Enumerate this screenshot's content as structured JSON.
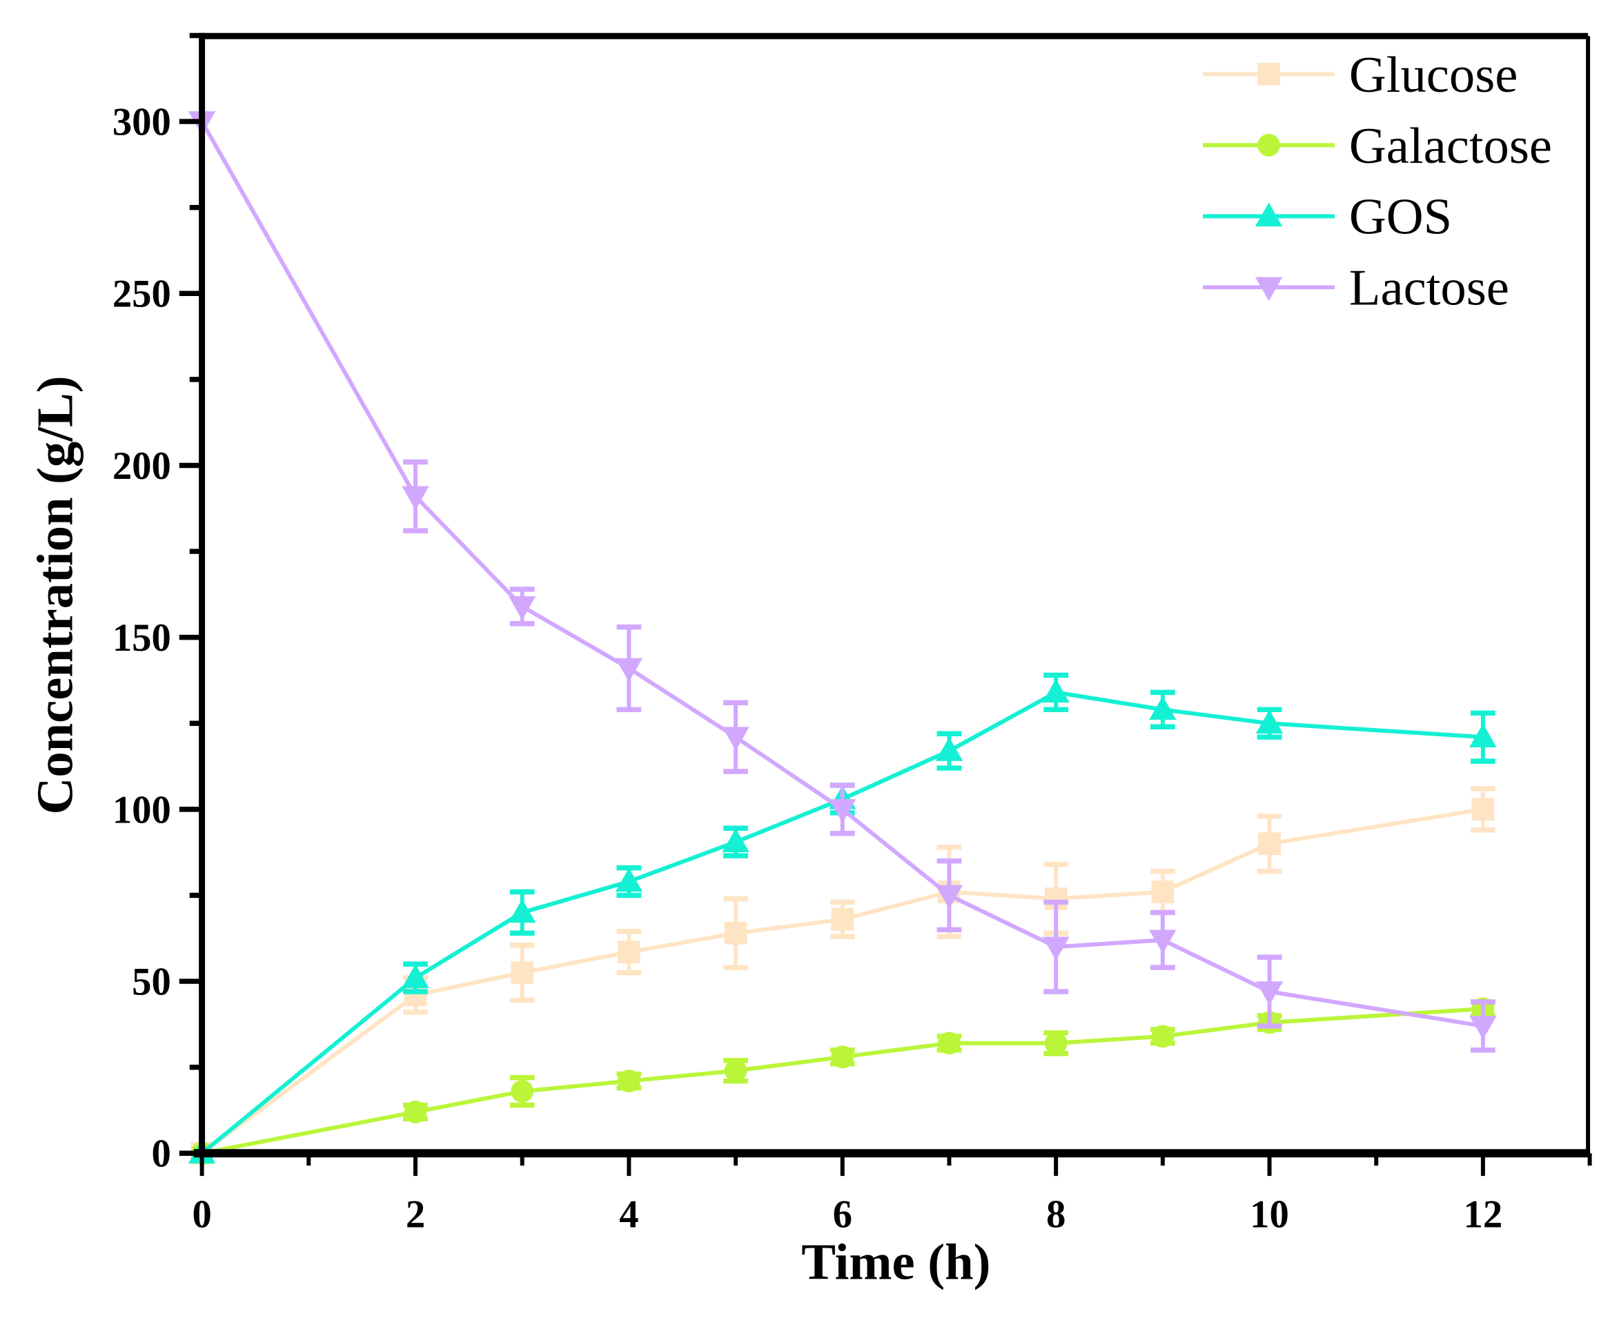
{
  "chart_data": {
    "type": "line",
    "title": "",
    "xlabel": "Time (h)",
    "ylabel": "Concentration (g/L)",
    "xlim": [
      0,
      13
    ],
    "ylim": [
      0,
      325
    ],
    "xticks": [
      0,
      2,
      4,
      6,
      8,
      10,
      12
    ],
    "xtick_labels": [
      "0",
      "2",
      "4",
      "6",
      "8",
      "10",
      "12"
    ],
    "yticks": [
      0,
      50,
      100,
      150,
      200,
      250,
      300
    ],
    "ytick_labels": [
      "0",
      "50",
      "100",
      "150",
      "200",
      "250",
      "300"
    ],
    "grid": false,
    "legend_position": "top-right",
    "x": [
      0,
      2,
      3,
      4,
      5,
      6,
      7,
      8,
      9,
      10,
      12
    ],
    "series": [
      {
        "name": "Glucose",
        "marker": "square",
        "color": "#ffe4c4",
        "values": [
          0,
          46,
          52.5,
          58.5,
          64,
          68,
          76,
          74,
          76,
          90,
          100
        ],
        "errors": [
          0,
          5,
          8,
          6,
          10,
          5,
          13,
          10,
          6,
          8,
          6
        ]
      },
      {
        "name": "Galactose",
        "marker": "circle",
        "color": "#bbf53a",
        "values": [
          0,
          12,
          18,
          21,
          24,
          28,
          32,
          32,
          34,
          38,
          42
        ],
        "errors": [
          0,
          2,
          4,
          2,
          3,
          2,
          2,
          3,
          2,
          2,
          2
        ]
      },
      {
        "name": "GOS",
        "marker": "triangle-up",
        "color": "#14f0d4",
        "values": [
          0,
          51,
          70,
          79,
          90.5,
          103,
          117,
          134,
          129,
          125,
          121
        ],
        "errors": [
          0,
          4,
          6,
          4,
          4,
          4,
          5,
          5,
          5,
          4,
          7
        ]
      },
      {
        "name": "Lactose",
        "marker": "triangle-down",
        "color": "#d2a8ff",
        "values": [
          300,
          191,
          159,
          141,
          121,
          100,
          75,
          60,
          62,
          47,
          37
        ],
        "errors": [
          0,
          10,
          5,
          12,
          10,
          7,
          10,
          13,
          8,
          10,
          7
        ]
      }
    ]
  }
}
